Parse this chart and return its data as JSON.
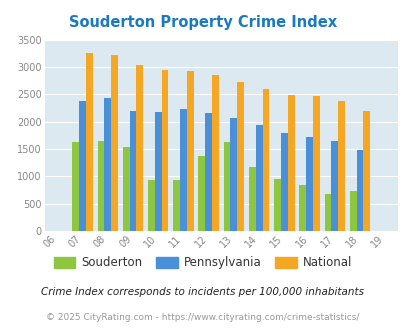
{
  "title": "Souderton Property Crime Index",
  "title_color": "#1a7abf",
  "years": [
    "06",
    "07",
    "08",
    "09",
    "10",
    "11",
    "12",
    "13",
    "14",
    "15",
    "16",
    "17",
    "18",
    "19"
  ],
  "souderton": [
    0,
    1620,
    1640,
    1540,
    930,
    930,
    1370,
    1620,
    1170,
    960,
    840,
    680,
    730,
    0
  ],
  "pennsylvania": [
    0,
    2370,
    2440,
    2200,
    2170,
    2230,
    2150,
    2070,
    1940,
    1800,
    1720,
    1640,
    1490,
    0
  ],
  "national": [
    0,
    3260,
    3210,
    3040,
    2950,
    2920,
    2860,
    2730,
    2590,
    2490,
    2470,
    2370,
    2200,
    0
  ],
  "bar_width": 0.27,
  "ylim": [
    0,
    3500
  ],
  "yticks": [
    0,
    500,
    1000,
    1500,
    2000,
    2500,
    3000,
    3500
  ],
  "color_souderton": "#8dc641",
  "color_pennsylvania": "#4a90d9",
  "color_national": "#f5a623",
  "bg_color": "#dce9f0",
  "grid_color": "#ffffff",
  "footnote1": "Crime Index corresponds to incidents per 100,000 inhabitants",
  "footnote2": "© 2025 CityRating.com - https://www.cityrating.com/crime-statistics/"
}
